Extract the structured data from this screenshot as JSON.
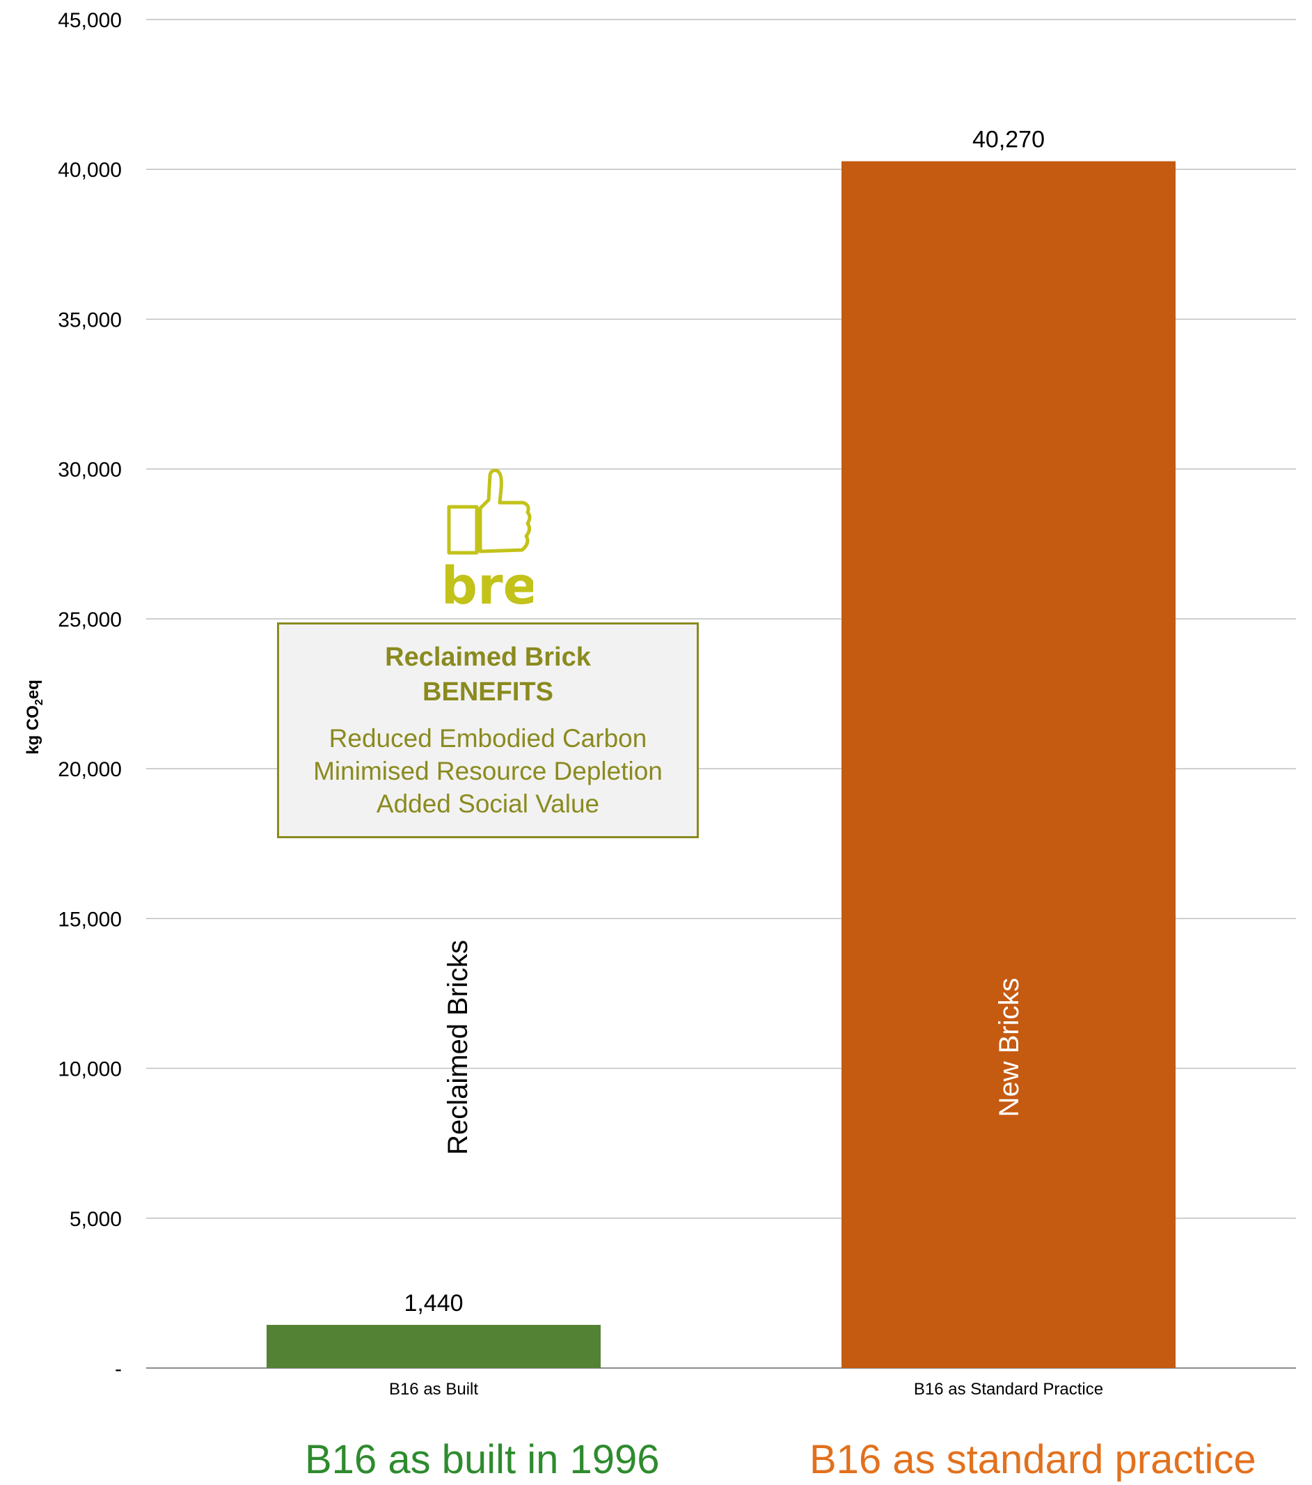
{
  "chart_data": {
    "type": "bar",
    "categories": [
      "B16 as Built",
      "B16 as Standard Practice"
    ],
    "values": [
      1440,
      40270
    ],
    "data_labels": [
      "1,440",
      "40,270"
    ],
    "bar_inner_labels": [
      "Reclaimed Bricks",
      "New Bricks"
    ],
    "bar_colors": [
      "#548235",
      "#c55a11"
    ],
    "bar_inner_label_colors": [
      "#000000",
      "#ffffff"
    ],
    "ylabel_main": "kg CO",
    "ylabel_sub": "2",
    "ylabel_tail": "eq",
    "ylim": [
      0,
      45000
    ],
    "yticks": [
      0,
      5000,
      10000,
      15000,
      20000,
      25000,
      30000,
      35000,
      40000,
      45000
    ],
    "ytick_labels": [
      "-",
      "5,000",
      "10,000",
      "15,000",
      "20,000",
      "25,000",
      "30,000",
      "35,000",
      "40,000",
      "45,000"
    ],
    "grid": true,
    "legend": "none"
  },
  "callout": {
    "title_line1": "Reclaimed Brick",
    "title_line2": "BENEFITS",
    "items": [
      "Reduced Embodied Carbon",
      "Minimised Resource Depletion",
      "Added Social Value"
    ],
    "color": "#8a8a1f"
  },
  "logo": {
    "icon": "thumbs-up-icon",
    "text": "bre",
    "color": "#c2c21a"
  },
  "captions": {
    "left": "B16 as built in 1996",
    "left_color": "#2e8b2e",
    "right": "B16 as standard practice",
    "right_color": "#e2711d"
  }
}
